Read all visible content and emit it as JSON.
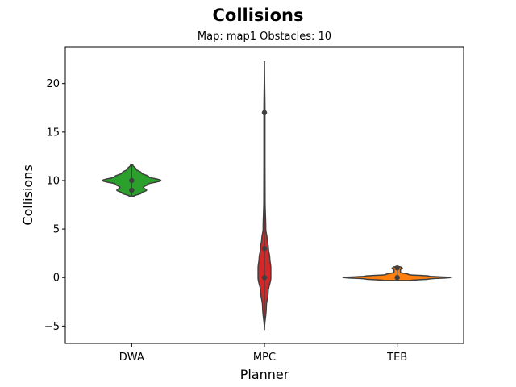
{
  "chart_data": {
    "type": "violin",
    "title": "Collisions",
    "subtitle": "Map: map1 Obstacles: 10",
    "xlabel": "Planner",
    "ylabel": "Collisions",
    "ylim": [
      -6.8,
      23.8
    ],
    "yticks": [
      -5,
      0,
      5,
      10,
      15,
      20
    ],
    "ytick_labels": [
      "−5",
      "0",
      "5",
      "10",
      "15",
      "20"
    ],
    "grid": false,
    "categories": [
      "DWA",
      "MPC",
      "TEB"
    ],
    "series": [
      {
        "category": "DWA",
        "color": "#2ca02c",
        "range": [
          8.4,
          11.6
        ],
        "points": [
          9,
          10
        ],
        "profile": [
          [
            8.4,
            0.05
          ],
          [
            8.7,
            0.18
          ],
          [
            9.0,
            0.28
          ],
          [
            9.3,
            0.22
          ],
          [
            9.6,
            0.3
          ],
          [
            10.0,
            0.55
          ],
          [
            10.4,
            0.32
          ],
          [
            10.8,
            0.18
          ],
          [
            11.2,
            0.08
          ],
          [
            11.6,
            0.02
          ]
        ]
      },
      {
        "category": "MPC",
        "color": "#d62728",
        "range": [
          -5.4,
          22.3
        ],
        "points": [
          0,
          3,
          17
        ],
        "profile": [
          [
            -5.4,
            0.0
          ],
          [
            -3.0,
            0.035
          ],
          [
            -1.5,
            0.07
          ],
          [
            0.0,
            0.12
          ],
          [
            1.0,
            0.12
          ],
          [
            2.0,
            0.1
          ],
          [
            3.0,
            0.075
          ],
          [
            4.0,
            0.05
          ],
          [
            5.0,
            0.025
          ],
          [
            8.0,
            0.012
          ],
          [
            12.0,
            0.01
          ],
          [
            17.0,
            0.01
          ],
          [
            22.3,
            0.0
          ]
        ]
      },
      {
        "category": "TEB",
        "color": "#ff7f0e",
        "range": [
          -0.3,
          1.2
        ],
        "points": [
          0,
          1
        ],
        "profile": [
          [
            -0.3,
            0.25
          ],
          [
            -0.15,
            0.6
          ],
          [
            0.0,
            1.0
          ],
          [
            0.15,
            0.6
          ],
          [
            0.3,
            0.22
          ],
          [
            0.55,
            0.06
          ],
          [
            0.8,
            0.06
          ],
          [
            0.95,
            0.1
          ],
          [
            1.05,
            0.08
          ],
          [
            1.2,
            0.0
          ]
        ]
      }
    ]
  }
}
